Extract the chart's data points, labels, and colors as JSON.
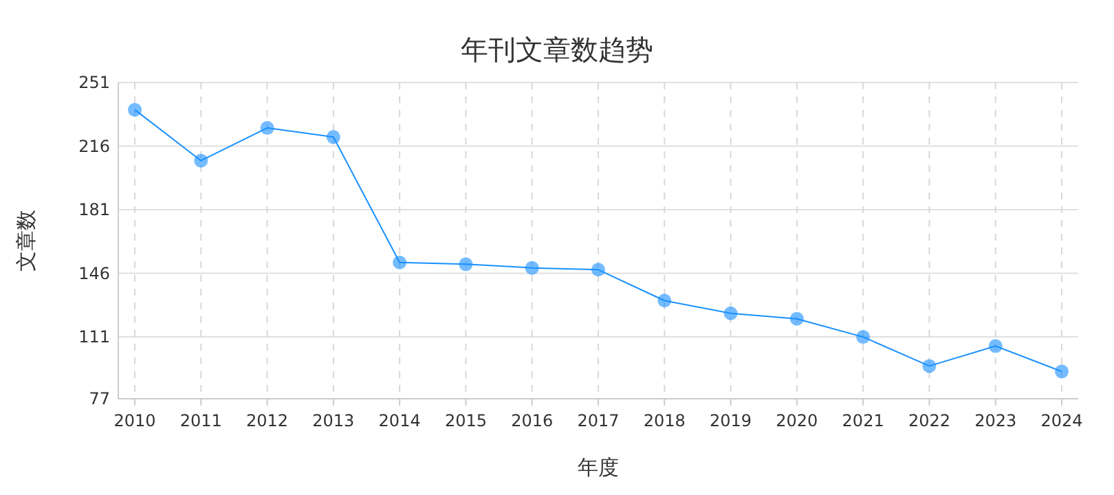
{
  "chart_data": {
    "type": "line",
    "title": "年刊文章数趋势",
    "xlabel": "年度",
    "ylabel": "文章数",
    "categories": [
      "2010",
      "2011",
      "2012",
      "2013",
      "2014",
      "2015",
      "2016",
      "2017",
      "2018",
      "2019",
      "2020",
      "2021",
      "2022",
      "2023",
      "2024"
    ],
    "series": [
      {
        "color": "#1890ff",
        "values": [
          236,
          208,
          226,
          221,
          152,
          151,
          149,
          148,
          131,
          124,
          121,
          111,
          95,
          106,
          92
        ]
      }
    ],
    "ylim": [
      77,
      251
    ],
    "yticks": [
      77,
      111,
      146,
      181,
      216,
      251
    ],
    "grid": true,
    "marker": "circle",
    "line_style": "solid"
  }
}
